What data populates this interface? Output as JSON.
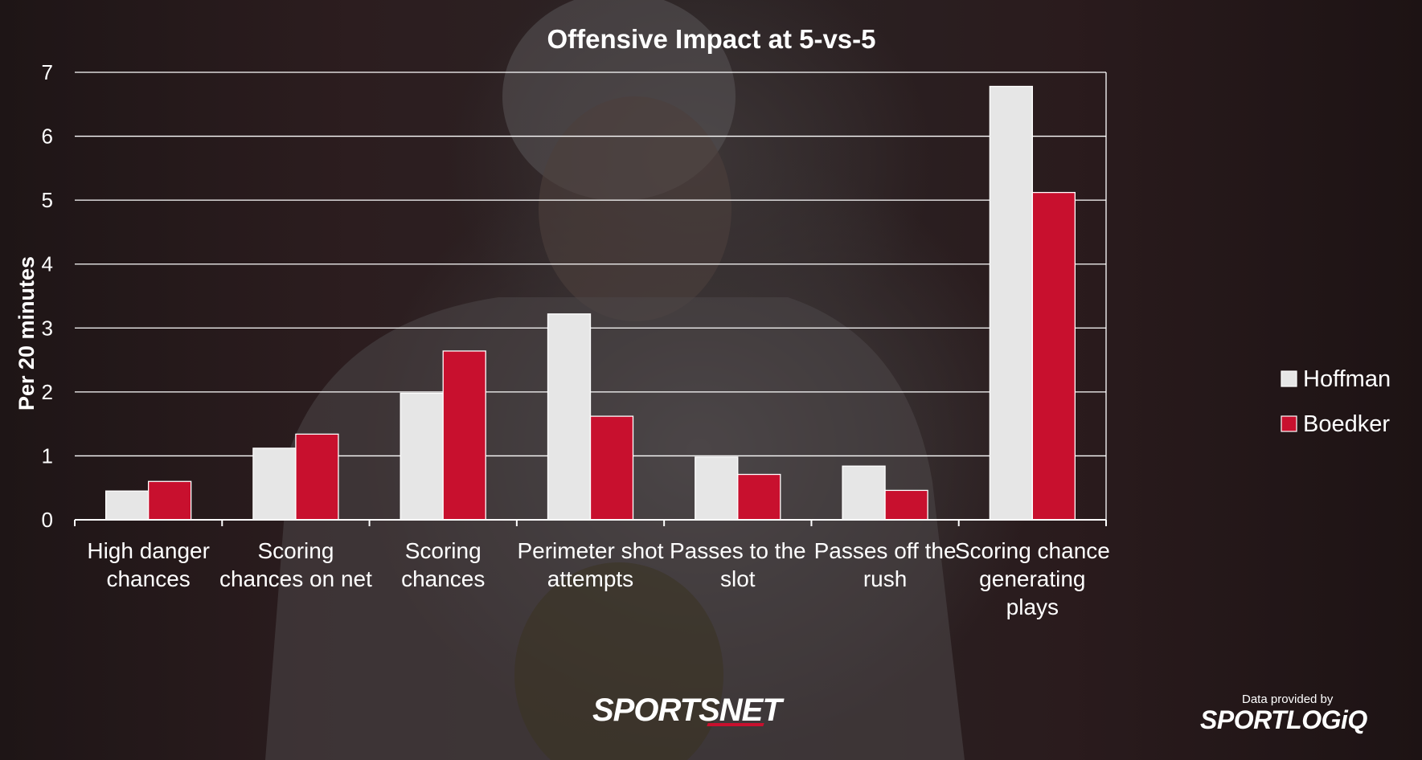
{
  "chart_data": {
    "type": "bar",
    "title": "Offensive Impact at 5-vs-5",
    "ylabel": "Per 20 minutes",
    "xlabel": "",
    "ylim": [
      0,
      7
    ],
    "yticks": [
      "0",
      "1",
      "2",
      "3",
      "4",
      "5",
      "6",
      "7"
    ],
    "grid": true,
    "legend_position": "right",
    "categories": [
      [
        "High danger",
        "chances"
      ],
      [
        "Scoring",
        "chances on net"
      ],
      [
        "Scoring",
        "chances"
      ],
      [
        "Perimeter shot",
        "attempts"
      ],
      [
        "Passes to the",
        "slot"
      ],
      [
        "Passes off the",
        "rush"
      ],
      [
        "Scoring chance",
        "generating",
        "plays"
      ]
    ],
    "series": [
      {
        "name": "Hoffman",
        "color": "#e6e6e6",
        "values": [
          0.45,
          1.12,
          1.98,
          3.22,
          0.98,
          0.84,
          6.78
        ]
      },
      {
        "name": "Boedker",
        "color": "#c8102e",
        "values": [
          0.6,
          1.34,
          2.64,
          1.62,
          0.71,
          0.46,
          5.12
        ]
      }
    ]
  },
  "branding": {
    "broadcaster": "SPORTSNET",
    "credit": "Data provided by",
    "provider": "SPORTLOGiQ"
  },
  "colors": {
    "grid": "#ffffff",
    "bar_outline": "#ffffff"
  }
}
